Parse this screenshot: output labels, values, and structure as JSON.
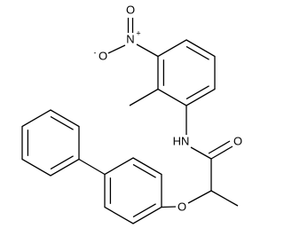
{
  "nitro": {
    "oxygen_top": "O",
    "nitrogen": "N",
    "charge_plus": "+",
    "oxygen_left": "O",
    "charge_minus": "-"
  },
  "amide": {
    "nh": "HN",
    "oxygen": "O"
  },
  "ether": {
    "oxygen": "O"
  }
}
